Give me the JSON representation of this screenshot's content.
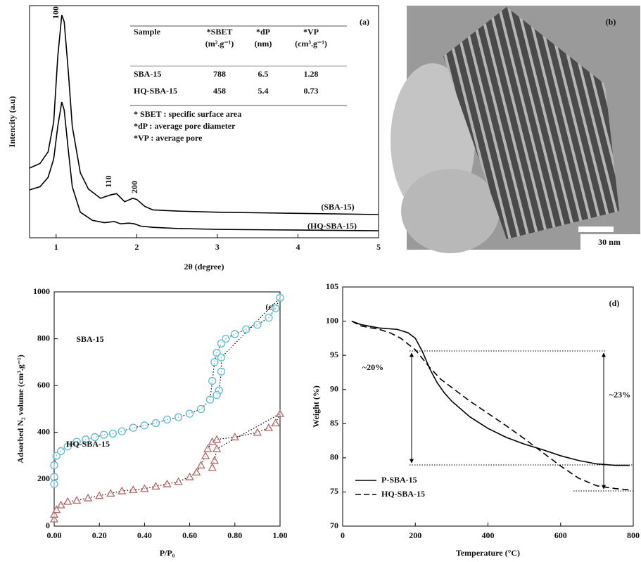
{
  "chart_data": [
    {
      "type": "line",
      "label": "(a)",
      "xlabel": "2θ (degree)",
      "ylabel": "Intencity (a.u)",
      "xlim": [
        0.67,
        5
      ],
      "xticks": [
        1,
        2,
        3,
        4,
        5
      ],
      "ylim": [
        0,
        100
      ],
      "annotations": [
        "100",
        "110",
        "200"
      ],
      "series": [
        {
          "name": "(SBA-15)",
          "color": "#000000",
          "x": [
            0.67,
            0.8,
            0.9,
            0.97,
            1.02,
            1.07,
            1.1,
            1.15,
            1.2,
            1.3,
            1.4,
            1.55,
            1.68,
            1.75,
            1.85,
            1.95,
            2.0,
            2.1,
            2.2,
            2.5,
            3,
            4,
            5
          ],
          "values": [
            30,
            32,
            37,
            50,
            78,
            96,
            93,
            72,
            48,
            28,
            21,
            17,
            18.5,
            19,
            15.5,
            17,
            16.5,
            13.5,
            12,
            11.5,
            11,
            10.5,
            10
          ]
        },
        {
          "name": "(HQ-SBA-15)",
          "color": "#000000",
          "x": [
            0.67,
            0.8,
            0.9,
            0.97,
            1.02,
            1.07,
            1.1,
            1.15,
            1.2,
            1.3,
            1.45,
            1.6,
            1.72,
            1.8,
            1.9,
            1.97,
            2.05,
            2.2,
            2.5,
            3,
            4,
            5
          ],
          "values": [
            20.6,
            22,
            26,
            34,
            48,
            58.5,
            55,
            38,
            22,
            11,
            7.5,
            6.5,
            7,
            6,
            6.3,
            6,
            5,
            4.5,
            4,
            3.6,
            3.3,
            3
          ]
        }
      ],
      "table": {
        "header": [
          {
            "name": "Sample"
          },
          {
            "name": "*SBET",
            "unit": "(m².g⁻¹)"
          },
          {
            "name": "*dP",
            "unit": "(nm)"
          },
          {
            "name": "*VP",
            "unit": "(cm³.g⁻¹)"
          }
        ],
        "rows": [
          [
            "SBA-15",
            788,
            6.5,
            1.28
          ],
          [
            "HQ-SBA-15",
            458,
            5.4,
            0.73
          ]
        ],
        "notes": [
          "* SBET : specific surface area",
          "*dP : average pore diameter",
          "*VP : average pore"
        ]
      }
    },
    {
      "type": "image",
      "label": "(b)",
      "scale_bar": "30 nm"
    },
    {
      "type": "scatter",
      "label": "(c)",
      "xlabel": "P/P₀",
      "ylabel": "Adsorbed N₂ volume (cm³.g⁻¹)",
      "xlim": [
        0,
        1
      ],
      "xticks": [
        {
          "value": 0,
          "label": "0.00"
        },
        {
          "value": 0.2,
          "label": "0.20"
        },
        {
          "value": 0.4,
          "label": "0.40"
        },
        {
          "value": 0.6,
          "label": "0.60"
        },
        {
          "value": 0.8,
          "label": "0.80"
        },
        {
          "value": 1,
          "label": "1.00"
        }
      ],
      "ylim": [
        0,
        1000
      ],
      "yticks": [
        0,
        200,
        400,
        600,
        800,
        1000
      ],
      "series": [
        {
          "name": "SBA-15",
          "color": "#5bbcd6",
          "marker": "circle",
          "x": [
            0,
            0,
            0,
            0.01,
            0.03,
            0.06,
            0.1,
            0.14,
            0.18,
            0.22,
            0.26,
            0.3,
            0.35,
            0.4,
            0.45,
            0.5,
            0.55,
            0.6,
            0.65,
            0.69,
            0.7,
            0.71,
            0.72,
            0.74,
            0.76,
            0.8,
            0.85,
            0.9,
            0.95,
            0.98,
            1.0,
            0.74,
            0.74,
            0.73,
            0.72
          ],
          "values": [
            180,
            210,
            260,
            300,
            320,
            340,
            360,
            370,
            380,
            390,
            395,
            405,
            420,
            430,
            440,
            455,
            465,
            480,
            500,
            540,
            620,
            700,
            740,
            780,
            800,
            820,
            840,
            860,
            890,
            930,
            975,
            720,
            660,
            580,
            560
          ]
        },
        {
          "name": "HQ-SBA-15",
          "color": "#b06a6a",
          "marker": "triangle",
          "x": [
            0,
            0,
            0.01,
            0.03,
            0.06,
            0.1,
            0.15,
            0.2,
            0.25,
            0.3,
            0.35,
            0.4,
            0.45,
            0.5,
            0.55,
            0.6,
            0.63,
            0.65,
            0.67,
            0.68,
            0.7,
            0.72,
            0.8,
            0.9,
            0.95,
            0.98,
            1.0,
            0.72,
            0.71,
            0.7
          ],
          "values": [
            30,
            50,
            70,
            90,
            105,
            110,
            120,
            130,
            140,
            150,
            155,
            160,
            170,
            180,
            190,
            210,
            230,
            260,
            300,
            330,
            360,
            370,
            380,
            400,
            420,
            440,
            480,
            330,
            280,
            250
          ]
        }
      ]
    },
    {
      "type": "line",
      "label": "(d)",
      "xlabel": "Temperature (°C)",
      "ylabel": "Weight (%)",
      "xlim": [
        0,
        800
      ],
      "xticks": [
        0,
        200,
        400,
        600,
        800
      ],
      "ylim": [
        70,
        105
      ],
      "yticks": [
        70,
        75,
        80,
        85,
        90,
        95,
        100,
        105
      ],
      "annotations": [
        "~20%",
        "~23%"
      ],
      "legend": "lower left",
      "series": [
        {
          "name": "P-SBA-15",
          "color": "#000000",
          "dash": "solid",
          "x": [
            25,
            50,
            100,
            150,
            180,
            200,
            220,
            240,
            260,
            280,
            300,
            350,
            400,
            450,
            500,
            550,
            600,
            650,
            700,
            750,
            790
          ],
          "values": [
            100,
            99.5,
            99,
            98.8,
            98.3,
            97.5,
            95.5,
            93,
            91,
            89.5,
            88.3,
            86,
            84.3,
            83,
            82,
            81.2,
            80.3,
            79.6,
            79.1,
            78.9,
            78.9
          ]
        },
        {
          "name": "HQ-SBA-15",
          "color": "#000000",
          "dash": "dashed",
          "x": [
            25,
            50,
            100,
            130,
            160,
            200,
            240,
            270,
            300,
            350,
            400,
            450,
            500,
            550,
            600,
            650,
            700,
            750,
            790
          ],
          "values": [
            100,
            99.3,
            98.8,
            98.3,
            97.5,
            95.8,
            93.2,
            91.5,
            90.3,
            88.3,
            86.5,
            84.7,
            82.8,
            80.8,
            78.8,
            77,
            75.9,
            75.5,
            75.3
          ]
        }
      ]
    }
  ]
}
